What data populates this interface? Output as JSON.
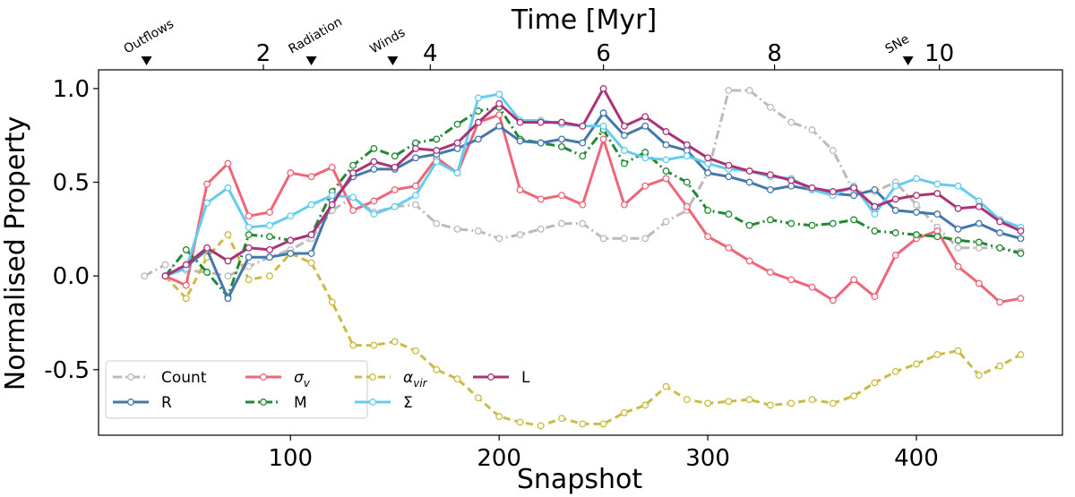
{
  "chart_data": {
    "type": "line",
    "xlabel": "Snapshot",
    "ylabel": "Normalised Property",
    "top_xlabel": "Time [Myr]",
    "xlim": [
      8,
      470
    ],
    "ylim": [
      -0.85,
      1.1
    ],
    "x_ticks": [
      100,
      200,
      300,
      400
    ],
    "x_tick_labels": [
      "100",
      "200",
      "300",
      "400"
    ],
    "y_ticks": [
      1.0,
      0.5,
      0.0,
      -0.5
    ],
    "y_tick_labels": [
      "1.0",
      "0.5",
      "0.0",
      "-0.5"
    ],
    "top_ticks": [
      {
        "snapshot": 87,
        "label": "2"
      },
      {
        "snapshot": 167,
        "label": "4"
      },
      {
        "snapshot": 250,
        "label": "6"
      },
      {
        "snapshot": 332,
        "label": "8"
      },
      {
        "snapshot": 411,
        "label": "10"
      }
    ],
    "events": [
      {
        "snapshot": 31,
        "label": "Outflows"
      },
      {
        "snapshot": 110,
        "label": "Radiation"
      },
      {
        "snapshot": 149,
        "label": "Winds"
      },
      {
        "snapshot": 396,
        "label": "SNe"
      }
    ],
    "legend": {
      "location": "lower-left",
      "columns": 4
    },
    "series": [
      {
        "name": "Count",
        "color": "#bbbbbb",
        "dash": "10,4,2,4",
        "x": [
          30,
          40,
          50,
          60,
          70,
          80,
          90,
          100,
          110,
          120,
          130,
          140,
          150,
          160,
          170,
          180,
          190,
          200,
          210,
          220,
          230,
          240,
          250,
          260,
          270,
          280,
          290,
          300,
          310,
          320,
          330,
          340,
          350,
          360,
          370,
          380,
          390,
          400,
          410,
          420,
          430,
          440,
          450
        ],
        "y": [
          0.0,
          0.06,
          0.03,
          0.02,
          0.0,
          0.05,
          0.1,
          0.14,
          0.2,
          0.35,
          0.42,
          0.34,
          0.37,
          0.38,
          0.28,
          0.25,
          0.24,
          0.2,
          0.22,
          0.25,
          0.28,
          0.28,
          0.2,
          0.2,
          0.2,
          0.29,
          0.35,
          0.55,
          0.99,
          0.99,
          0.9,
          0.82,
          0.78,
          0.67,
          0.45,
          0.45,
          0.5,
          0.38,
          0.26,
          0.15,
          0.15,
          0.15,
          0.13
        ]
      },
      {
        "name": "R",
        "color": "#4477aa",
        "dash": "",
        "x": [
          40,
          50,
          60,
          70,
          80,
          90,
          100,
          110,
          120,
          130,
          140,
          150,
          160,
          170,
          180,
          190,
          200,
          210,
          220,
          230,
          240,
          250,
          260,
          270,
          280,
          290,
          300,
          310,
          320,
          330,
          340,
          350,
          360,
          370,
          380,
          390,
          400,
          410,
          420,
          430,
          440,
          450
        ],
        "y": [
          0.0,
          0.05,
          0.14,
          -0.12,
          0.1,
          0.1,
          0.12,
          0.12,
          0.4,
          0.53,
          0.57,
          0.57,
          0.63,
          0.65,
          0.68,
          0.73,
          0.8,
          0.72,
          0.71,
          0.73,
          0.71,
          0.87,
          0.75,
          0.8,
          0.7,
          0.67,
          0.55,
          0.53,
          0.5,
          0.46,
          0.48,
          0.46,
          0.44,
          0.43,
          0.46,
          0.35,
          0.34,
          0.33,
          0.25,
          0.28,
          0.23,
          0.2
        ]
      },
      {
        "name": "σ_v",
        "color": "#ee6677",
        "dash": "",
        "x": [
          40,
          50,
          60,
          70,
          80,
          90,
          100,
          110,
          120,
          130,
          140,
          150,
          160,
          170,
          180,
          190,
          200,
          210,
          220,
          230,
          240,
          250,
          260,
          270,
          280,
          290,
          300,
          310,
          320,
          330,
          340,
          350,
          360,
          370,
          380,
          390,
          400,
          410,
          420,
          430,
          440,
          450
        ],
        "y": [
          0.0,
          -0.05,
          0.49,
          0.6,
          0.32,
          0.34,
          0.55,
          0.53,
          0.58,
          0.35,
          0.4,
          0.46,
          0.48,
          0.63,
          0.55,
          0.82,
          0.86,
          0.46,
          0.41,
          0.43,
          0.38,
          0.73,
          0.38,
          0.48,
          0.52,
          0.37,
          0.21,
          0.15,
          0.08,
          0.02,
          -0.02,
          -0.06,
          -0.13,
          -0.02,
          -0.11,
          0.11,
          0.2,
          0.24,
          0.05,
          -0.04,
          -0.14,
          -0.12
        ]
      },
      {
        "name": "M",
        "color": "#228833",
        "dash": "10,4,2,4",
        "x": [
          40,
          50,
          60,
          70,
          80,
          90,
          100,
          110,
          120,
          130,
          140,
          150,
          160,
          170,
          180,
          190,
          200,
          210,
          220,
          230,
          240,
          250,
          260,
          270,
          280,
          290,
          300,
          310,
          320,
          330,
          340,
          350,
          360,
          370,
          380,
          390,
          400,
          410,
          420,
          430,
          440,
          450
        ],
        "y": [
          0.0,
          0.14,
          0.02,
          -0.11,
          0.22,
          0.21,
          0.19,
          0.22,
          0.45,
          0.59,
          0.68,
          0.64,
          0.71,
          0.73,
          0.81,
          0.88,
          0.9,
          0.73,
          0.71,
          0.69,
          0.64,
          0.78,
          0.6,
          0.66,
          0.56,
          0.5,
          0.35,
          0.33,
          0.27,
          0.3,
          0.28,
          0.27,
          0.28,
          0.3,
          0.24,
          0.23,
          0.22,
          0.21,
          0.19,
          0.18,
          0.15,
          0.12
        ]
      },
      {
        "name": "α_vir",
        "color": "#ccbb44",
        "dash": "8,5",
        "x": [
          40,
          50,
          60,
          70,
          80,
          90,
          100,
          110,
          120,
          130,
          140,
          150,
          160,
          170,
          180,
          190,
          200,
          210,
          220,
          230,
          240,
          250,
          260,
          270,
          280,
          290,
          300,
          310,
          320,
          330,
          340,
          350,
          360,
          370,
          380,
          390,
          400,
          410,
          420,
          430,
          440,
          450
        ],
        "y": [
          0.0,
          -0.12,
          0.1,
          0.22,
          -0.02,
          0.0,
          0.12,
          0.07,
          -0.14,
          -0.37,
          -0.37,
          -0.35,
          -0.4,
          -0.5,
          -0.55,
          -0.65,
          -0.75,
          -0.78,
          -0.8,
          -0.76,
          -0.79,
          -0.79,
          -0.73,
          -0.69,
          -0.59,
          -0.66,
          -0.68,
          -0.67,
          -0.66,
          -0.69,
          -0.68,
          -0.66,
          -0.68,
          -0.64,
          -0.57,
          -0.51,
          -0.47,
          -0.42,
          -0.4,
          -0.53,
          -0.48,
          -0.42
        ]
      },
      {
        "name": "Σ",
        "color": "#66ccee",
        "dash": "",
        "x": [
          40,
          50,
          60,
          70,
          80,
          90,
          100,
          110,
          120,
          130,
          140,
          150,
          160,
          170,
          180,
          190,
          200,
          210,
          220,
          230,
          240,
          250,
          260,
          270,
          280,
          290,
          300,
          310,
          320,
          330,
          340,
          350,
          360,
          370,
          380,
          390,
          400,
          410,
          420,
          430,
          440,
          450
        ],
        "y": [
          0.0,
          0.04,
          0.39,
          0.47,
          0.26,
          0.27,
          0.32,
          0.38,
          0.43,
          0.42,
          0.33,
          0.37,
          0.43,
          0.61,
          0.55,
          0.95,
          0.97,
          0.83,
          0.83,
          0.81,
          0.8,
          0.8,
          0.67,
          0.63,
          0.62,
          0.64,
          0.6,
          0.57,
          0.56,
          0.53,
          0.52,
          0.46,
          0.43,
          0.48,
          0.33,
          0.48,
          0.52,
          0.49,
          0.48,
          0.4,
          0.3,
          0.26
        ]
      },
      {
        "name": "L",
        "color": "#aa3377",
        "dash": "",
        "x": [
          40,
          50,
          60,
          70,
          80,
          90,
          100,
          110,
          120,
          130,
          140,
          150,
          160,
          170,
          180,
          190,
          200,
          210,
          220,
          230,
          240,
          250,
          260,
          270,
          280,
          290,
          300,
          310,
          320,
          330,
          340,
          350,
          360,
          370,
          380,
          390,
          400,
          410,
          420,
          430,
          440,
          450
        ],
        "y": [
          0.0,
          0.06,
          0.15,
          0.08,
          0.15,
          0.14,
          0.19,
          0.22,
          0.38,
          0.55,
          0.61,
          0.58,
          0.68,
          0.67,
          0.71,
          0.82,
          0.92,
          0.82,
          0.82,
          0.82,
          0.8,
          1.0,
          0.8,
          0.85,
          0.77,
          0.7,
          0.63,
          0.59,
          0.56,
          0.54,
          0.51,
          0.47,
          0.45,
          0.47,
          0.37,
          0.41,
          0.43,
          0.44,
          0.36,
          0.37,
          0.29,
          0.24
        ]
      }
    ]
  }
}
